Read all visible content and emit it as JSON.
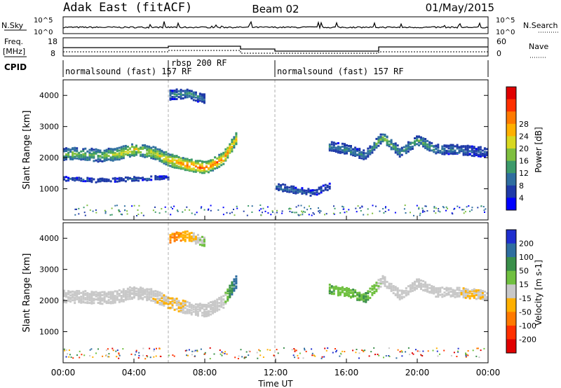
{
  "header": {
    "site": "Adak East (fitACF)",
    "beam": "Beam 02",
    "date": "01/May/2015"
  },
  "noise_panel": {
    "left_label": "N.Sky",
    "right_label": "N.Search",
    "ticks_left": [
      "10^5",
      "10^0"
    ],
    "ticks_right": [
      "10^5",
      "10^0"
    ]
  },
  "freq_panel": {
    "left_label_1": "Freq.",
    "left_label_2": "[MHz]",
    "right_label": "Nave",
    "ticks_left": [
      "18",
      "8"
    ],
    "ticks_right": [
      "60",
      "0"
    ]
  },
  "cpid": {
    "label": "CPID",
    "segments": [
      {
        "start_h": 0,
        "end_h": 6,
        "text": "normalsound (fast) 157 RF"
      },
      {
        "start_h": 6,
        "end_h": 12,
        "text": "rbsp 200 RF"
      },
      {
        "start_h": 12,
        "end_h": 24,
        "text": "normalsound (fast) 157 RF"
      }
    ]
  },
  "x_axis": {
    "label": "Time UT",
    "ticks": [
      "00:00",
      "04:00",
      "08:00",
      "12:00",
      "16:00",
      "20:00",
      "00:00"
    ]
  },
  "chart_data": [
    {
      "type": "heatmap",
      "title": "Power",
      "ylabel": "Slant Range [km]",
      "xlabel": "",
      "xlim": [
        0,
        24
      ],
      "ylim": [
        0,
        4500
      ],
      "yticks": [
        "1000",
        "2000",
        "3000",
        "4000"
      ],
      "colorbar": {
        "label": "Power [dB]",
        "ticks": [
          "4",
          "8",
          "12",
          "16",
          "20",
          "24",
          "28"
        ],
        "colors": [
          "#0000ff",
          "#1f3aa8",
          "#2f6ea0",
          "#3c9a6a",
          "#7fbf3f",
          "#d8d820",
          "#ffb000",
          "#ff7a00",
          "#ff3000",
          "#e00000"
        ]
      },
      "echo_bands": [
        {
          "name": "main",
          "x": [
            0,
            1,
            2,
            3,
            4,
            5,
            6,
            7,
            8,
            9,
            9.8
          ],
          "y_center": [
            2150,
            2150,
            2100,
            2150,
            2300,
            2200,
            1950,
            1800,
            1700,
            2000,
            2700
          ],
          "width": 260,
          "peak_db": [
            12,
            14,
            13,
            16,
            18,
            16,
            20,
            24,
            24,
            22,
            20
          ]
        },
        {
          "name": "upper_patch",
          "x": [
            6,
            7,
            8
          ],
          "y_center": [
            4050,
            4100,
            3900
          ],
          "width": 180,
          "peak_db": [
            8,
            10,
            8
          ]
        },
        {
          "name": "lower_band",
          "x": [
            0,
            2,
            4,
            6
          ],
          "y_center": [
            1350,
            1300,
            1350,
            1400
          ],
          "width": 60,
          "peak_db": [
            6,
            6,
            6,
            6
          ]
        },
        {
          "name": "afternoon",
          "x": [
            15,
            16,
            17,
            18,
            19,
            20,
            21,
            22,
            23,
            24
          ],
          "y_center": [
            2400,
            2300,
            2100,
            2700,
            2200,
            2600,
            2300,
            2300,
            2250,
            2200
          ],
          "width": 200,
          "peak_db": [
            8,
            10,
            8,
            14,
            10,
            12,
            10,
            8,
            6,
            6
          ]
        },
        {
          "name": "noon_low",
          "x": [
            12,
            13,
            14,
            15
          ],
          "y_center": [
            1100,
            1000,
            900,
            1100
          ],
          "width": 150,
          "peak_db": [
            8,
            8,
            6,
            6
          ]
        }
      ]
    },
    {
      "type": "heatmap",
      "title": "Velocity",
      "ylabel": "Slant Range [km]",
      "xlabel": "Time UT",
      "xlim": [
        0,
        24
      ],
      "ylim": [
        0,
        4500
      ],
      "yticks": [
        "1000",
        "2000",
        "3000",
        "4000"
      ],
      "colorbar": {
        "label": "Velocity [m s-1]",
        "ticks": [
          "200",
          "100",
          "50",
          "15",
          "-15",
          "-50",
          "-100",
          "-200"
        ],
        "colors": [
          "#1f2fcf",
          "#2f6ea0",
          "#3a8f4a",
          "#70c040",
          "#c8c8c8",
          "#ffb000",
          "#ff7a00",
          "#ff3000",
          "#e00000"
        ]
      },
      "echo_bands": [
        {
          "name": "main",
          "x": [
            0,
            1,
            2,
            3,
            4,
            5,
            6,
            7,
            8,
            9,
            9.8
          ],
          "y_center": [
            2150,
            2150,
            2100,
            2150,
            2300,
            2200,
            1950,
            1800,
            1700,
            2000,
            2700
          ],
          "width": 260,
          "velocity": [
            0,
            0,
            0,
            0,
            0,
            0,
            -20,
            0,
            0,
            0,
            150
          ]
        },
        {
          "name": "upper_patch",
          "x": [
            6,
            7,
            8
          ],
          "y_center": [
            4050,
            4100,
            3900
          ],
          "width": 180,
          "velocity": [
            -60,
            -40,
            30
          ]
        },
        {
          "name": "afternoon",
          "x": [
            15,
            16,
            17,
            18,
            19,
            20,
            21,
            22,
            23,
            24
          ],
          "y_center": [
            2400,
            2300,
            2100,
            2700,
            2200,
            2600,
            2300,
            2300,
            2250,
            2200
          ],
          "width": 200,
          "velocity": [
            40,
            30,
            60,
            0,
            0,
            0,
            0,
            0,
            -20,
            0
          ]
        }
      ]
    }
  ]
}
